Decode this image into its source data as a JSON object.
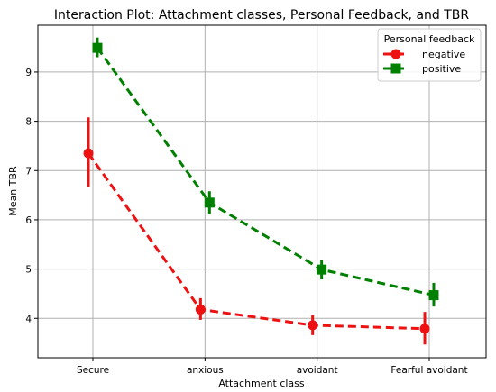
{
  "chart_data": {
    "type": "line",
    "title": "Interaction Plot: Attachment classes, Personal Feedback, and TBR",
    "xlabel": "Attachment class",
    "ylabel": "Mean TBR",
    "categories": [
      "Secure",
      "anxious",
      "avoidant",
      "Fearful avoidant"
    ],
    "ylim": [
      3.2,
      9.95
    ],
    "yticks": [
      4,
      5,
      6,
      7,
      8,
      9
    ],
    "grid": true,
    "legend": {
      "title": "Personal feedback",
      "placement": "top-right"
    },
    "series": [
      {
        "name": "negative",
        "color": "#ee1111",
        "marker": "circle",
        "linestyle": "dashed",
        "values": [
          7.35,
          4.18,
          3.86,
          3.79
        ],
        "err_low": [
          6.66,
          3.97,
          3.66,
          3.47
        ],
        "err_high": [
          8.08,
          4.41,
          4.06,
          4.13
        ],
        "x_offset": -0.04
      },
      {
        "name": "positive",
        "color": "#008000",
        "marker": "square",
        "linestyle": "dashed",
        "values": [
          9.49,
          6.35,
          4.99,
          4.47
        ],
        "err_low": [
          9.3,
          6.11,
          4.79,
          4.24
        ],
        "err_high": [
          9.7,
          6.58,
          5.19,
          4.72
        ],
        "x_offset": 0.04
      }
    ]
  }
}
